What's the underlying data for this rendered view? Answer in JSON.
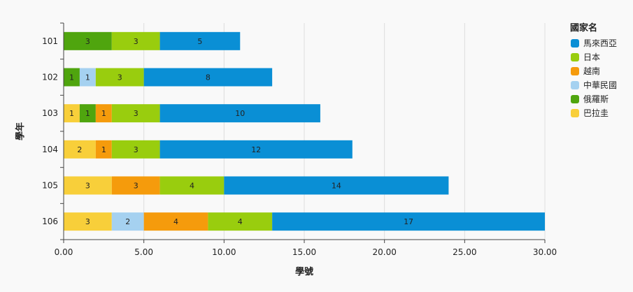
{
  "chart_data": {
    "type": "bar",
    "orientation": "horizontal",
    "stacked": true,
    "title": "",
    "xlabel": "學號",
    "ylabel": "學年",
    "xlim": [
      0,
      30
    ],
    "x_ticks": [
      "0.00",
      "5.00",
      "10.00",
      "15.00",
      "20.00",
      "25.00",
      "30.00"
    ],
    "grid": true,
    "legend_position": "right",
    "legend_title": "國家名",
    "categories": [
      "101",
      "102",
      "103",
      "104",
      "105",
      "106"
    ],
    "series": [
      {
        "name": "俄羅斯",
        "color": "#4fa50e",
        "values": [
          3,
          1,
          1,
          0,
          0,
          0
        ]
      },
      {
        "name": "巴拉圭",
        "color": "#f8cf3a",
        "values": [
          0,
          0,
          1,
          2,
          3,
          3
        ]
      },
      {
        "name": "中華民國",
        "color": "#a5d1f0",
        "values": [
          0,
          1,
          0,
          0,
          0,
          2
        ]
      },
      {
        "name": "越南",
        "color": "#f59b0c",
        "values": [
          0,
          0,
          1,
          1,
          3,
          4
        ]
      },
      {
        "name": "日本",
        "color": "#99cd0e",
        "values": [
          3,
          3,
          3,
          3,
          4,
          4
        ]
      },
      {
        "name": "馬來西亞",
        "color": "#0a8fd5",
        "values": [
          5,
          8,
          10,
          12,
          14,
          17
        ]
      }
    ],
    "stack_order": [
      [
        "俄羅斯",
        "日本",
        "馬來西亞"
      ],
      [
        "俄羅斯",
        "中華民國",
        "日本",
        "馬來西亞"
      ],
      [
        "巴拉圭",
        "俄羅斯",
        "越南",
        "日本",
        "馬來西亞"
      ],
      [
        "巴拉圭",
        "越南",
        "日本",
        "馬來西亞"
      ],
      [
        "巴拉圭",
        "越南",
        "日本",
        "馬來西亞"
      ],
      [
        "巴拉圭",
        "中華民國",
        "越南",
        "日本",
        "馬來西亞"
      ]
    ],
    "legend_order": [
      "馬來西亞",
      "日本",
      "越南",
      "中華民國",
      "俄羅斯",
      "巴拉圭"
    ]
  }
}
